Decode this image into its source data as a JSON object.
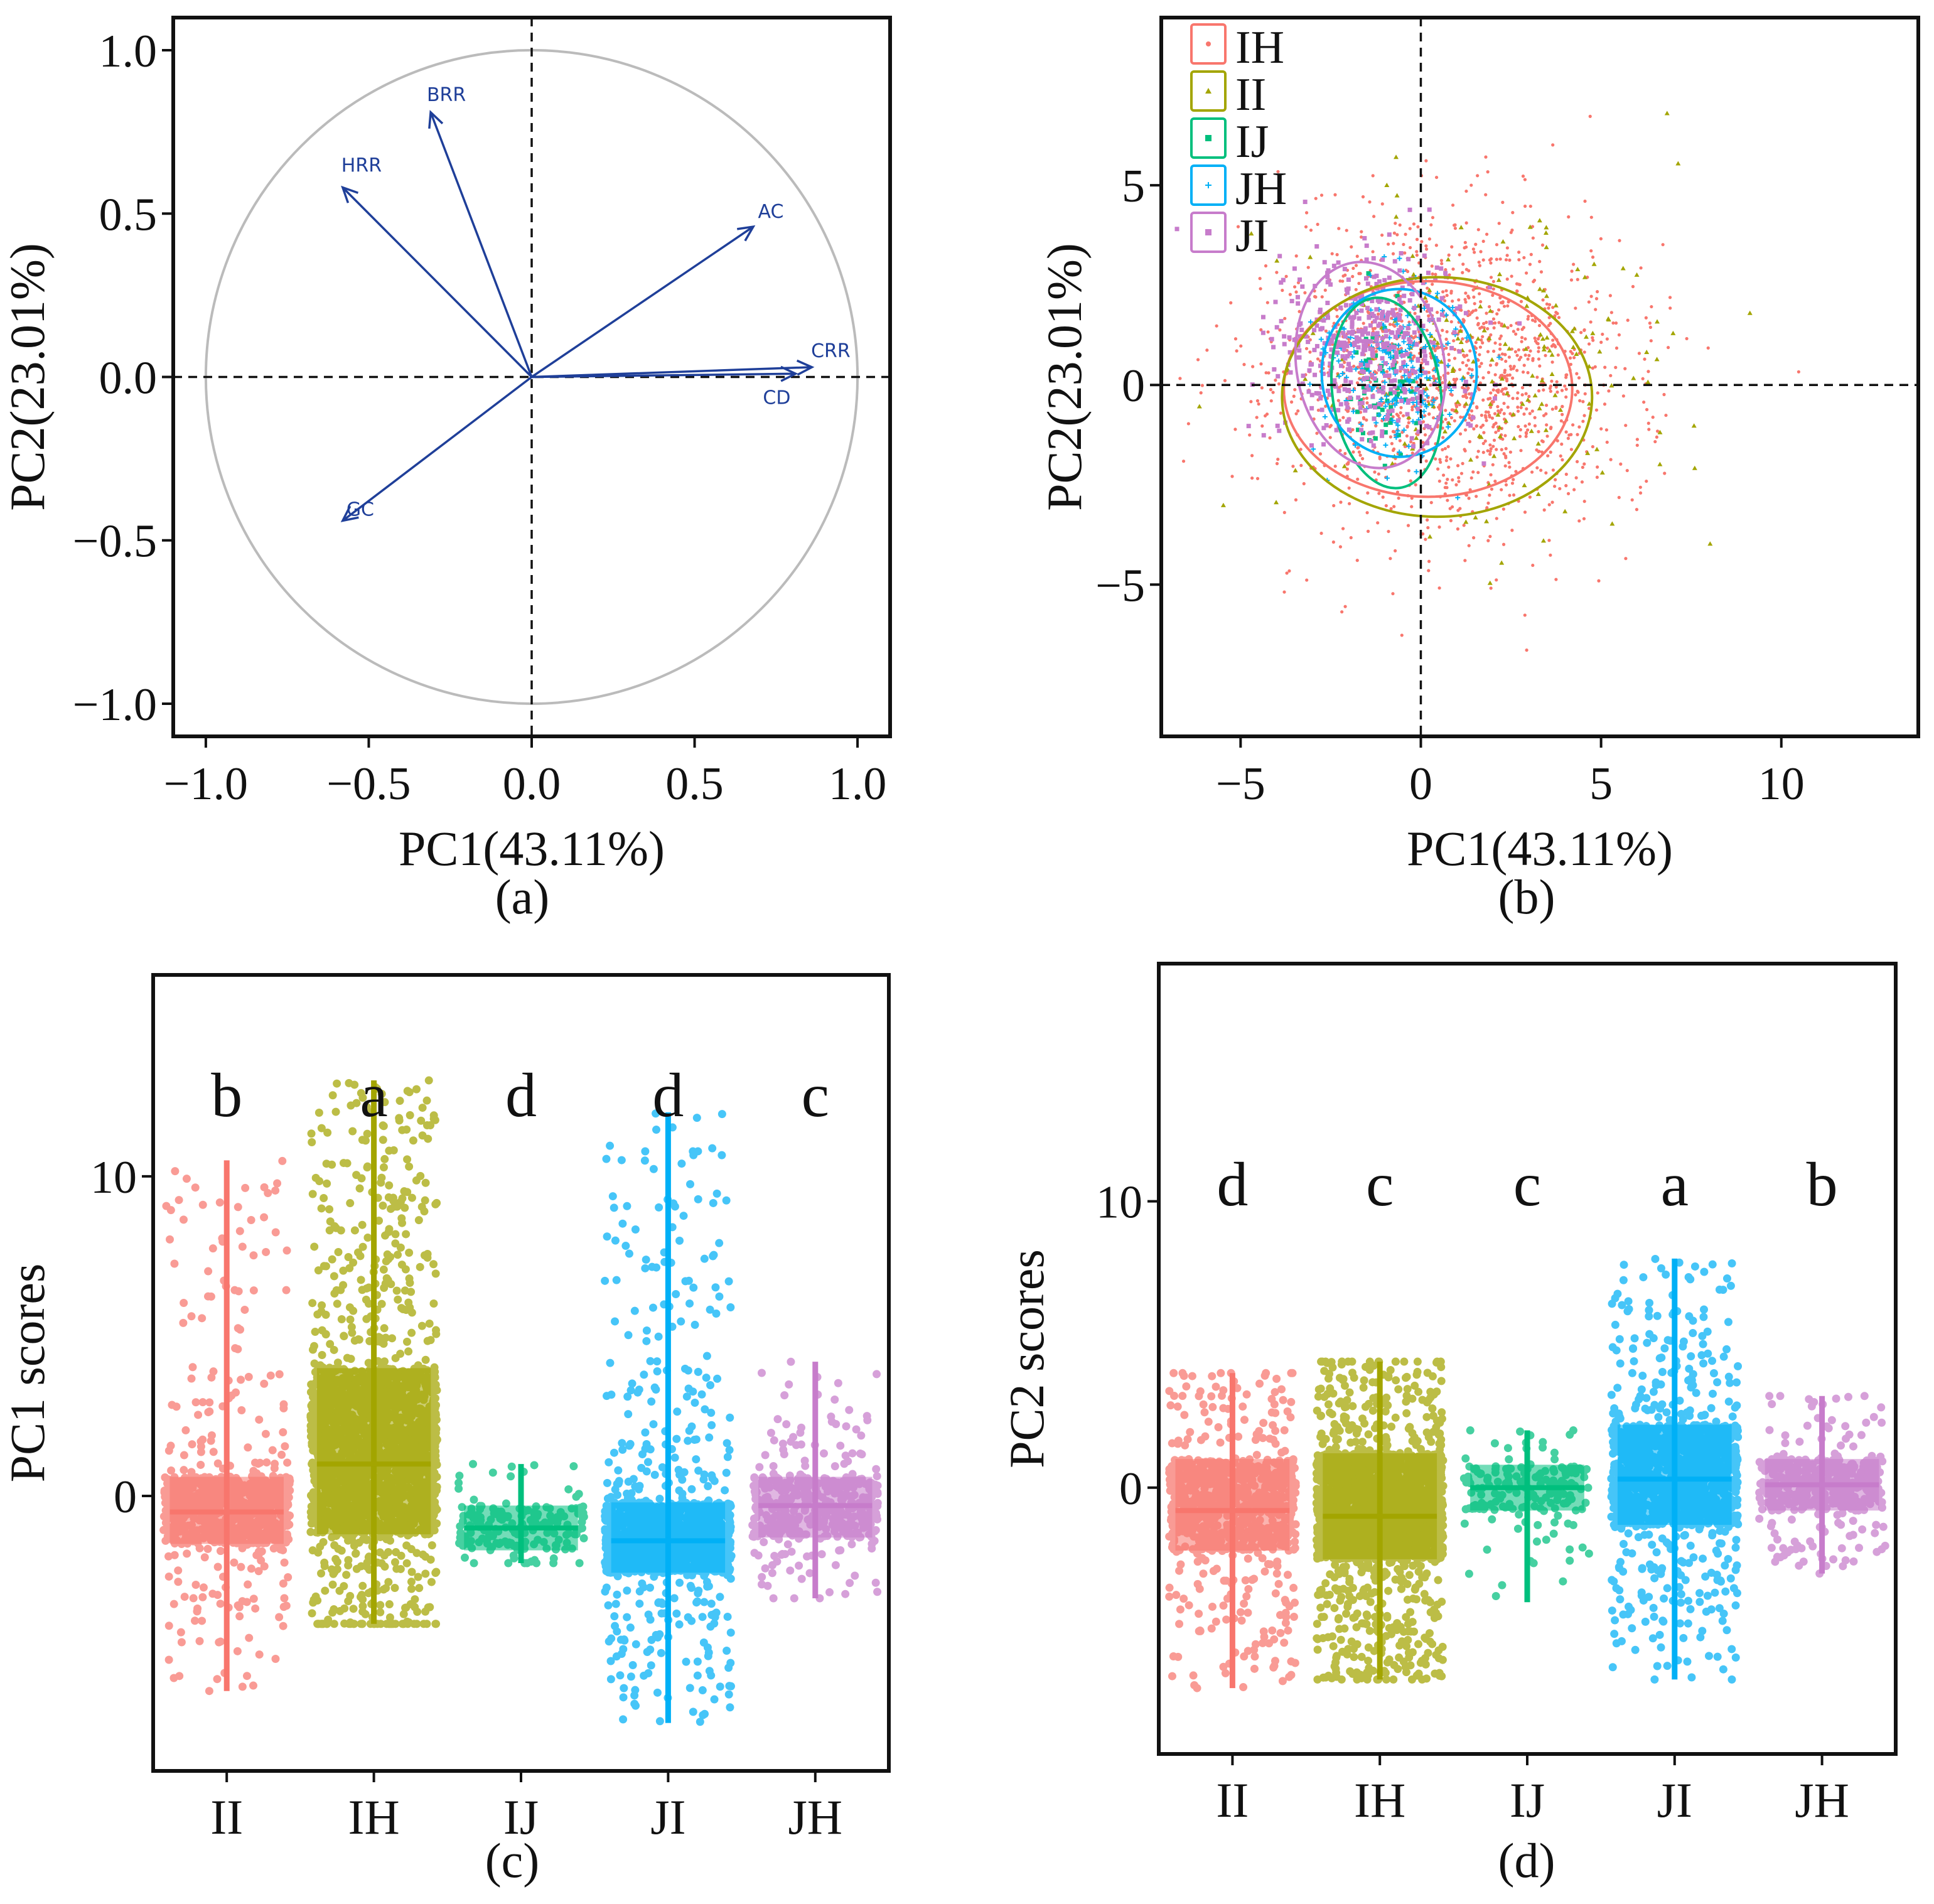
{
  "colors": {
    "IH": "#F8766D",
    "II": "#A3A500",
    "IJ": "#00BF7D",
    "JH": "#00B0F6",
    "JI": "#E76BF3",
    "JI_box": "#C77CCB",
    "arrow": "#1F3F99",
    "circle": "#bbbbbb",
    "axis": "#111111"
  },
  "icons": [
    "circle-dot-icon",
    "triangle-icon",
    "square-icon",
    "plus-icon",
    "square-icon"
  ],
  "chart_data": [
    {
      "id": "a",
      "type": "vector-loading-plot",
      "caption": "(a)",
      "xlabel": "PC1(43.11%)",
      "ylabel": "PC2(23.01%)",
      "xlim": [
        -1.1,
        1.1
      ],
      "ylim": [
        -1.1,
        1.1
      ],
      "xticks": [
        -1.0,
        -0.5,
        0.0,
        0.5,
        1.0
      ],
      "xtick_labels": [
        "−1.0",
        "−0.5",
        "0.0",
        "0.5",
        "1.0"
      ],
      "yticks": [
        -1.0,
        -0.5,
        0.0,
        0.5,
        1.0
      ],
      "ytick_labels": [
        "−1.0",
        "−0.5",
        "0.0",
        "0.5",
        "1.0"
      ],
      "unit_circle": true,
      "vectors": [
        {
          "name": "BRR",
          "x": -0.31,
          "y": 0.81
        },
        {
          "name": "HRR",
          "x": -0.58,
          "y": 0.58
        },
        {
          "name": "AC",
          "x": 0.68,
          "y": 0.46
        },
        {
          "name": "CRR",
          "x": 0.86,
          "y": 0.03
        },
        {
          "name": "CD",
          "x": 0.81,
          "y": 0.01
        },
        {
          "name": "GC",
          "x": -0.58,
          "y": -0.44
        }
      ]
    },
    {
      "id": "b",
      "type": "scatter",
      "caption": "(b)",
      "xlabel": "PC1(43.11%)",
      "ylabel": "PC2(23.01%)",
      "xlim": [
        -7.2,
        13.8
      ],
      "ylim": [
        -8.8,
        9.2
      ],
      "xticks": [
        -5,
        0,
        5,
        10
      ],
      "xtick_labels": [
        "−5",
        "0",
        "5",
        "10"
      ],
      "yticks": [
        -5,
        0,
        5
      ],
      "ytick_labels": [
        "−5",
        "0",
        "5"
      ],
      "legend": [
        "IH",
        "II",
        "IJ",
        "JH",
        "JI"
      ],
      "legend_position": "top-left",
      "series": [
        {
          "name": "IH",
          "marker": "circle",
          "center": [
            0.8,
            0.3
          ],
          "spread": [
            2.4,
            1.9
          ],
          "n": 1500
        },
        {
          "name": "II",
          "marker": "triangle",
          "center": [
            1.8,
            0.4
          ],
          "spread": [
            2.5,
            2.0
          ],
          "n": 180
        },
        {
          "name": "IJ",
          "marker": "square",
          "center": [
            -1.0,
            -0.1
          ],
          "spread": [
            0.5,
            0.8
          ],
          "n": 70
        },
        {
          "name": "JH",
          "marker": "plus",
          "center": [
            -0.7,
            0.4
          ],
          "spread": [
            0.9,
            1.0
          ],
          "n": 220
        },
        {
          "name": "JI",
          "marker": "square",
          "center": [
            -1.5,
            0.9
          ],
          "spread": [
            1.3,
            1.2
          ],
          "n": 450
        }
      ],
      "ellipses": [
        {
          "name": "IH",
          "cx": 0.2,
          "cy": -0.1,
          "rx": 4.0,
          "ry": 2.7,
          "angle": 0
        },
        {
          "name": "II",
          "cx": 0.45,
          "cy": -0.3,
          "rx": 4.3,
          "ry": 3.0,
          "angle": 0
        },
        {
          "name": "IJ",
          "cx": -0.95,
          "cy": -0.2,
          "rx": 1.5,
          "ry": 2.4,
          "angle": 8
        },
        {
          "name": "JH",
          "cx": -0.6,
          "cy": 0.3,
          "rx": 2.15,
          "ry": 2.1,
          "angle": 0
        },
        {
          "name": "JI",
          "cx": -1.4,
          "cy": 0.5,
          "rx": 2.05,
          "ry": 2.6,
          "angle": 10
        }
      ]
    },
    {
      "id": "c",
      "type": "jitter-box",
      "caption": "(c)",
      "xlabel": "",
      "ylabel": "PC1 scores",
      "ylim": [
        -8.6,
        16.3
      ],
      "yticks": [
        0,
        10
      ],
      "ytick_labels": [
        "0",
        "10"
      ],
      "categories": [
        "II",
        "IH",
        "IJ",
        "JI",
        "JH"
      ],
      "series_colors": [
        "II",
        "IH",
        "IJ",
        "JI",
        "JH"
      ],
      "plot_colors": [
        "IH",
        "II",
        "IJ",
        "JH",
        "JI_box"
      ],
      "significance": [
        "b",
        "a",
        "d",
        "d",
        "c"
      ],
      "summary": [
        {
          "category": "II",
          "q1": -1.5,
          "median": -0.5,
          "q3": 0.6,
          "min": -6.1,
          "max": 10.5
        },
        {
          "category": "IH",
          "q1": -1.2,
          "median": 1.0,
          "q3": 4.0,
          "min": -4.0,
          "max": 13.0
        },
        {
          "category": "IJ",
          "q1": -1.7,
          "median": -1.0,
          "q3": -0.3,
          "min": -2.1,
          "max": 1.0
        },
        {
          "category": "JI",
          "q1": -2.4,
          "median": -1.4,
          "q3": -0.2,
          "min": -7.1,
          "max": 12.0
        },
        {
          "category": "JH",
          "q1": -1.3,
          "median": -0.3,
          "q3": 0.6,
          "min": -3.2,
          "max": 4.2
        }
      ]
    },
    {
      "id": "d",
      "type": "jitter-box",
      "caption": "(d)",
      "xlabel": "",
      "ylabel": "PC2 scores",
      "ylim": [
        -9.3,
        18.3
      ],
      "yticks": [
        0,
        10
      ],
      "ytick_labels": [
        "0",
        "10"
      ],
      "categories": [
        "II",
        "IH",
        "IJ",
        "JI",
        "JH"
      ],
      "series_colors": [
        "II",
        "IH",
        "IJ",
        "JI",
        "JH"
      ],
      "plot_colors": [
        "IH",
        "II",
        "IJ",
        "JH",
        "JI_box"
      ],
      "significance": [
        "d",
        "c",
        "c",
        "a",
        "b"
      ],
      "summary": [
        {
          "category": "II",
          "q1": -2.2,
          "median": -0.8,
          "q3": 1.0,
          "min": -7.0,
          "max": 4.0
        },
        {
          "category": "IH",
          "q1": -2.5,
          "median": -1.0,
          "q3": 1.2,
          "min": -6.7,
          "max": 4.4
        },
        {
          "category": "IJ",
          "q1": -0.8,
          "median": 0.0,
          "q3": 0.8,
          "min": -4.0,
          "max": 2.0
        },
        {
          "category": "JI",
          "q1": -1.3,
          "median": 0.3,
          "q3": 2.2,
          "min": -6.7,
          "max": 8.0
        },
        {
          "category": "JH",
          "q1": -0.8,
          "median": 0.1,
          "q3": 1.0,
          "min": -3.0,
          "max": 3.2
        }
      ]
    }
  ]
}
